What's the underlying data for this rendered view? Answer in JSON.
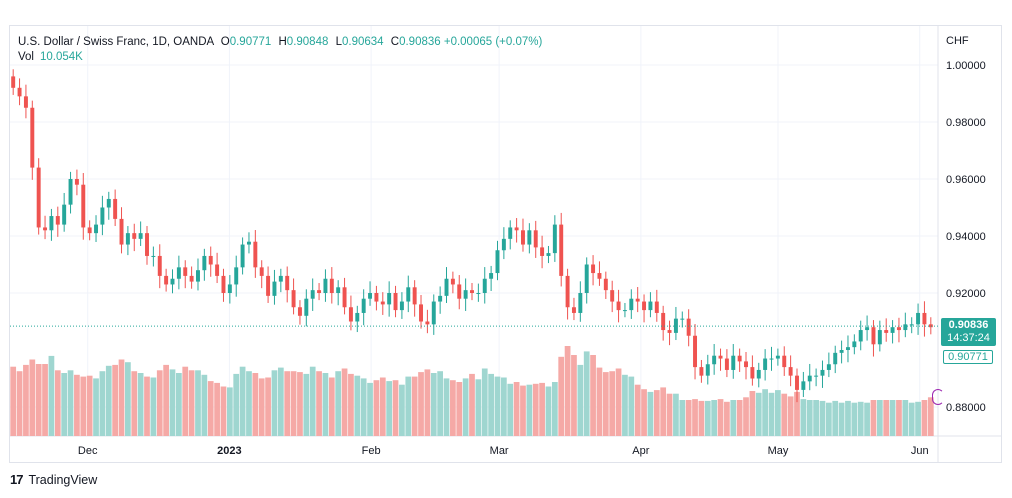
{
  "header": {
    "symbol": "U.S. Dollar / Swiss Franc, 1D, OANDA",
    "o_label": "O",
    "o_value": "0.90771",
    "h_label": "H",
    "h_value": "0.90848",
    "l_label": "L",
    "l_value": "0.90634",
    "c_label": "C",
    "c_value": "0.90836",
    "change": "+0.00065 (+0.07%)",
    "vol_label": "Vol",
    "vol_value": "10.054K"
  },
  "axis": {
    "currency": "CHF",
    "y_ticks": [
      "1.00000",
      "0.98000",
      "0.96000",
      "0.94000",
      "0.92000",
      "0.88000"
    ],
    "x_ticks": [
      "Dec",
      "2023",
      "Feb",
      "Mar",
      "Apr",
      "May",
      "Jun"
    ]
  },
  "price_labels": {
    "last_price": "0.90836",
    "countdown": "14:37:24",
    "open_price": "0.90771"
  },
  "footer": {
    "brand": "TradingView"
  },
  "colors": {
    "up": "#26a69a",
    "down": "#ef5350",
    "up_vol": "#9fd6d0",
    "down_vol": "#f5a9a6",
    "grid": "#f0f3fa"
  },
  "chart_data": {
    "type": "candlestick",
    "title": "U.S. Dollar / Swiss Franc, 1D, OANDA",
    "ylabel": "CHF",
    "ylim": [
      0.873,
      1.006
    ],
    "x_range": [
      "2022-11-14",
      "2023-06-05"
    ],
    "x_ticks": [
      {
        "label": "Dec",
        "date": "2022-12-01"
      },
      {
        "label": "2023",
        "date": "2023-01-01"
      },
      {
        "label": "Feb",
        "date": "2023-02-01"
      },
      {
        "label": "Mar",
        "date": "2023-03-01"
      },
      {
        "label": "Apr",
        "date": "2023-04-01"
      },
      {
        "label": "May",
        "date": "2023-05-01"
      },
      {
        "label": "Jun",
        "date": "2023-06-01"
      }
    ],
    "close": [
      0.992,
      0.989,
      0.985,
      0.964,
      0.943,
      0.942,
      0.947,
      0.944,
      0.951,
      0.96,
      0.958,
      0.943,
      0.941,
      0.944,
      0.95,
      0.953,
      0.946,
      0.937,
      0.941,
      0.939,
      0.941,
      0.933,
      0.933,
      0.926,
      0.923,
      0.925,
      0.929,
      0.926,
      0.924,
      0.928,
      0.933,
      0.93,
      0.926,
      0.92,
      0.923,
      0.929,
      0.937,
      0.938,
      0.929,
      0.926,
      0.919,
      0.924,
      0.926,
      0.921,
      0.915,
      0.912,
      0.918,
      0.921,
      0.92,
      0.925,
      0.92,
      0.922,
      0.915,
      0.91,
      0.913,
      0.918,
      0.92,
      0.917,
      0.916,
      0.92,
      0.914,
      0.917,
      0.922,
      0.916,
      0.91,
      0.909,
      0.917,
      0.919,
      0.925,
      0.923,
      0.918,
      0.921,
      0.92,
      0.92,
      0.925,
      0.927,
      0.935,
      0.939,
      0.943,
      0.942,
      0.937,
      0.942,
      0.936,
      0.933,
      0.934,
      0.944,
      0.926,
      0.915,
      0.913,
      0.92,
      0.93,
      0.927,
      0.925,
      0.921,
      0.917,
      0.914,
      0.914,
      0.918,
      0.917,
      0.914,
      0.917,
      0.913,
      0.907,
      0.906,
      0.911,
      0.911,
      0.905,
      0.894,
      0.891,
      0.895,
      0.898,
      0.897,
      0.893,
      0.898,
      0.896,
      0.894,
      0.89,
      0.893,
      0.897,
      0.897,
      0.898,
      0.894,
      0.891,
      0.886,
      0.889,
      0.891,
      0.891,
      0.893,
      0.895,
      0.899,
      0.9,
      0.901,
      0.903,
      0.907,
      0.908,
      0.902,
      0.907,
      0.906,
      0.908,
      0.907,
      0.909,
      0.909,
      0.913,
      0.909,
      0.908
    ],
    "volume_values": [
      0.77,
      0.72,
      0.79,
      0.85,
      0.8,
      0.8,
      0.89,
      0.73,
      0.7,
      0.73,
      0.68,
      0.66,
      0.67,
      0.64,
      0.72,
      0.78,
      0.79,
      0.85,
      0.82,
      0.72,
      0.7,
      0.66,
      0.65,
      0.73,
      0.79,
      0.74,
      0.7,
      0.77,
      0.73,
      0.73,
      0.68,
      0.61,
      0.59,
      0.55,
      0.54,
      0.69,
      0.77,
      0.72,
      0.7,
      0.64,
      0.65,
      0.73,
      0.76,
      0.72,
      0.72,
      0.71,
      0.69,
      0.77,
      0.72,
      0.7,
      0.65,
      0.72,
      0.75,
      0.69,
      0.67,
      0.64,
      0.59,
      0.62,
      0.65,
      0.61,
      0.62,
      0.57,
      0.66,
      0.66,
      0.71,
      0.74,
      0.7,
      0.72,
      0.64,
      0.62,
      0.6,
      0.64,
      0.69,
      0.63,
      0.75,
      0.69,
      0.66,
      0.65,
      0.58,
      0.6,
      0.56,
      0.57,
      0.58,
      0.59,
      0.55,
      0.6,
      0.88,
      1.0,
      0.9,
      0.79,
      0.94,
      0.9,
      0.76,
      0.71,
      0.72,
      0.75,
      0.68,
      0.66,
      0.57,
      0.52,
      0.49,
      0.51,
      0.54,
      0.47,
      0.47,
      0.4,
      0.4,
      0.41,
      0.39,
      0.39,
      0.4,
      0.41,
      0.38,
      0.4,
      0.4,
      0.43,
      0.5,
      0.48,
      0.52,
      0.48,
      0.51,
      0.47,
      0.44,
      0.49,
      0.41,
      0.4,
      0.4,
      0.39,
      0.37,
      0.39,
      0.37,
      0.39,
      0.37,
      0.38,
      0.37,
      0.4,
      0.4,
      0.4,
      0.4,
      0.4,
      0.4,
      0.37,
      0.38,
      0.4,
      0.43
    ]
  }
}
